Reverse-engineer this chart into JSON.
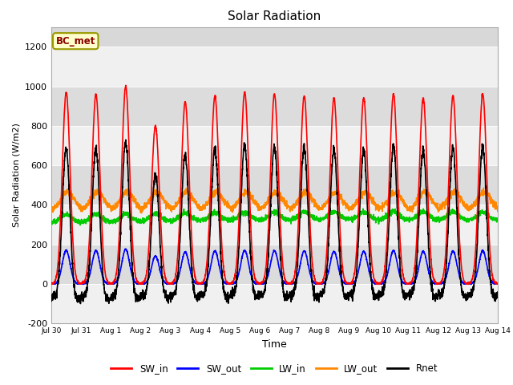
{
  "title": "Solar Radiation",
  "xlabel": "Time",
  "ylabel": "Solar Radiation (W/m2)",
  "ylim": [
    -200,
    1300
  ],
  "yticks": [
    -200,
    0,
    200,
    400,
    600,
    800,
    1000,
    1200
  ],
  "background_color": "#ffffff",
  "plot_bg_color": "#d8d8d8",
  "station_label": "BC_met",
  "series": {
    "SW_in": {
      "color": "#ff0000",
      "lw": 1.2
    },
    "SW_out": {
      "color": "#0000ff",
      "lw": 1.2
    },
    "LW_in": {
      "color": "#00cc00",
      "lw": 1.2
    },
    "LW_out": {
      "color": "#ff8800",
      "lw": 1.2
    },
    "Rnet": {
      "color": "#000000",
      "lw": 1.2
    }
  },
  "tick_labels": [
    "Jul 30",
    "Jul 31",
    "Aug 1",
    "Aug 2",
    "Aug 3",
    "Aug 4",
    "Aug 5",
    "Aug 6",
    "Aug 7",
    "Aug 8",
    "Aug 9",
    "Aug 10",
    "Aug 11",
    "Aug 12",
    "Aug 13",
    "Aug 14"
  ],
  "sw_in_peaks": [
    970,
    960,
    1000,
    800,
    920,
    950,
    970,
    960,
    950,
    940,
    940,
    960,
    940,
    950,
    960
  ],
  "n_points": 3000,
  "days_total": 15
}
